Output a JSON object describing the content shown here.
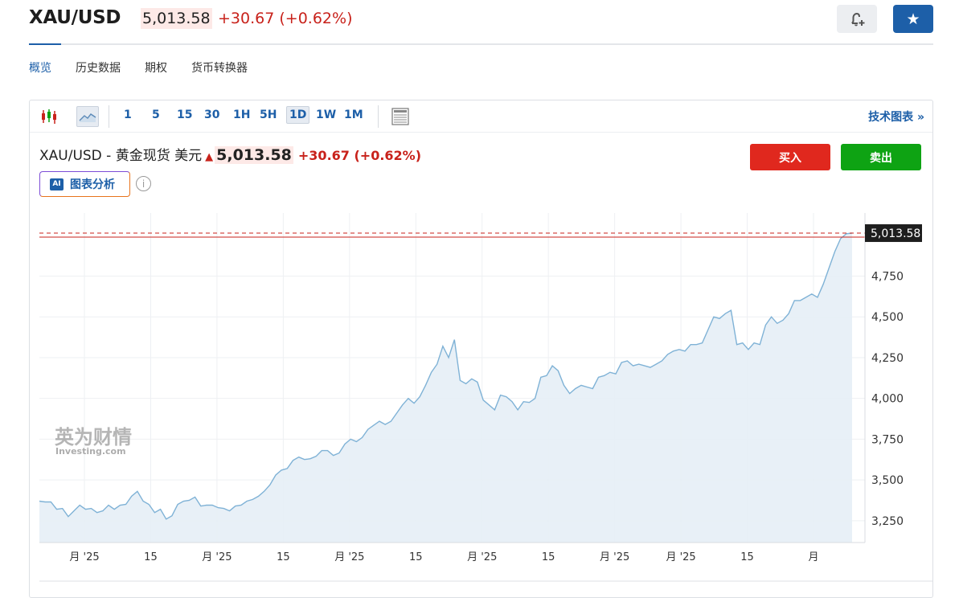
{
  "header": {
    "symbol": "XAU/USD",
    "price": "5,013.58",
    "change": "+30.67",
    "change_pct": "(+0.62%)"
  },
  "tabs": [
    "概览",
    "历史数据",
    "期权",
    "货币转换器"
  ],
  "toolbar": {
    "intervals": [
      "1",
      "5",
      "15",
      "30",
      "1H",
      "5H",
      "1D",
      "1W",
      "1M"
    ],
    "selected_interval": "1D",
    "tech_chart_label": "技术图表 »"
  },
  "instrument": {
    "name": "XAU/USD - 黄金现货 美元",
    "price": "5,013.58",
    "change": "+30.67",
    "change_pct": "(+0.62%)"
  },
  "ai_button": {
    "badge": "AI",
    "label": "图表分析"
  },
  "trade": {
    "buy": "买入",
    "sell": "卖出"
  },
  "watermark": {
    "cn": "英为财情",
    "en": "Investing",
    "en_suffix": ".com"
  },
  "colors": {
    "accent": "#1d5fa8",
    "down_red": "#c8221b",
    "buy": "#e0281e",
    "sell": "#0ea313",
    "line": "#7fb2d6",
    "area": "#e6eef6"
  },
  "chart_data": {
    "type": "area",
    "series": [
      {
        "values": [
          3370,
          3365,
          3365,
          3320,
          3325,
          3275,
          3310,
          3345,
          3320,
          3325,
          3300,
          3310,
          3345,
          3320,
          3345,
          3350,
          3400,
          3430,
          3370,
          3350,
          3300,
          3320,
          3260,
          3280,
          3350,
          3370,
          3375,
          3395,
          3340,
          3345,
          3345,
          3330,
          3325,
          3310,
          3340,
          3345,
          3370,
          3380,
          3400,
          3430,
          3470,
          3530,
          3560,
          3570,
          3620,
          3640,
          3625,
          3630,
          3645,
          3680,
          3680,
          3650,
          3665,
          3720,
          3750,
          3735,
          3760,
          3810,
          3835,
          3860,
          3840,
          3860,
          3910,
          3960,
          4000,
          3970,
          4010,
          4080,
          4160,
          4210,
          4320,
          4250,
          4360,
          4110,
          4090,
          4120,
          4100,
          3990,
          3960,
          3930,
          4020,
          4010,
          3980,
          3930,
          3980,
          3975,
          4000,
          4130,
          4140,
          4200,
          4170,
          4080,
          4030,
          4060,
          4080,
          4070,
          4060,
          4130,
          4140,
          4160,
          4150,
          4220,
          4230,
          4200,
          4210,
          4200,
          4190,
          4210,
          4230,
          4270,
          4290,
          4300,
          4290,
          4330,
          4330,
          4340,
          4420,
          4500,
          4490,
          4520,
          4540,
          4330,
          4340,
          4300,
          4340,
          4330,
          4450,
          4500,
          4460,
          4480,
          4520,
          4600,
          4600,
          4620,
          4640,
          4620,
          4700,
          4800,
          4900,
          4980,
          5010,
          5013.58
        ]
      }
    ],
    "x_tick_labels": [
      "月 '25",
      "15",
      "月 '25",
      "15",
      "月 '25",
      "15",
      "月 '25",
      "15",
      "月 '25",
      "月 '25",
      "15",
      "月"
    ],
    "y_ticks": [
      3250,
      3500,
      3750,
      4000,
      4250,
      4500,
      4750
    ],
    "y_tick_labels": [
      "3,250",
      "3,500",
      "3,750",
      "4,000",
      "4,250",
      "4,500",
      "4,750"
    ],
    "last_value": 5013.58,
    "last_value_label": "5,013.58",
    "ylim": [
      3116,
      5137
    ],
    "grid": true
  }
}
